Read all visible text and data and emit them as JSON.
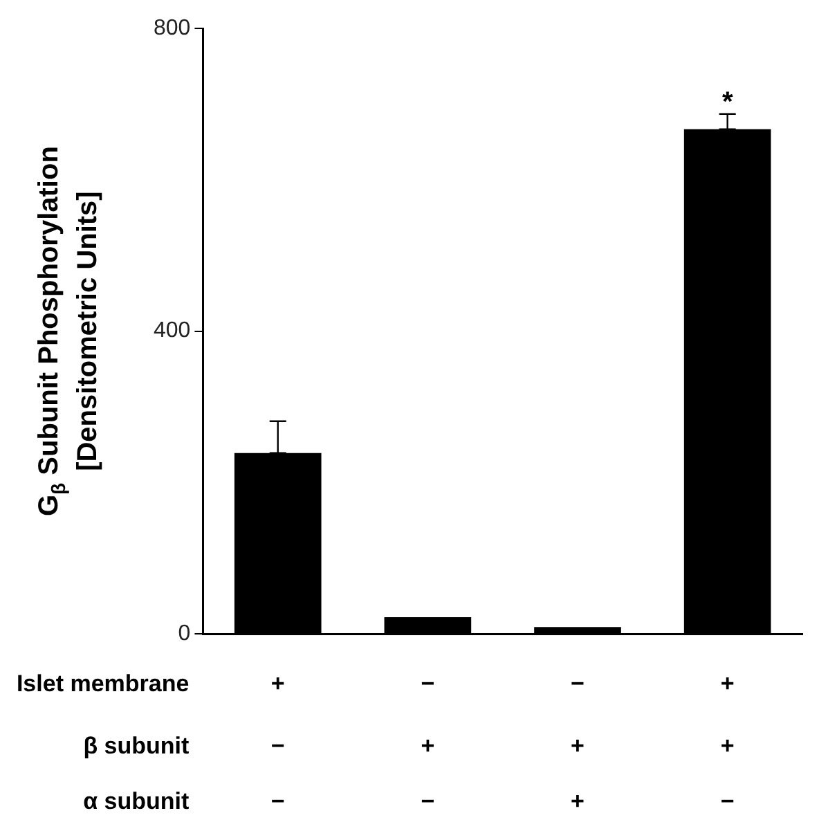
{
  "chart_data": {
    "type": "bar",
    "ylabel": "G$_{β}$ Subunit Phosphorylation\n[Densitometric Units]",
    "categories": [
      "+\n−\n−",
      "−\n+\n−",
      "−\n+\n+",
      "+\n+\n−"
    ],
    "values": [
      239,
      22,
      9,
      667
    ],
    "color": "#000000",
    "errors": [
      [
        239,
        281
      ],
      null,
      null,
      [
        667,
        687
      ]
    ],
    "ylim": [
      0,
      800
    ],
    "yticks": [
      0,
      400,
      800
    ],
    "grid": false,
    "annotations": [
      "Islet membrane",
      "β subunit",
      "α subunit",
      {
        "text": "*",
        "x": "+\n+\n−",
        "y": 687
      }
    ]
  }
}
